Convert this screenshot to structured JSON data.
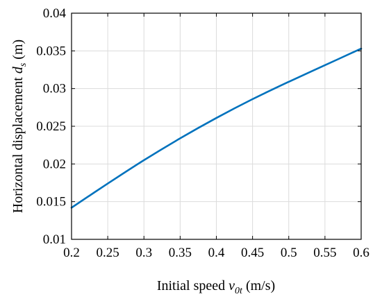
{
  "chart_data": {
    "type": "line",
    "xlabel": {
      "prefix": "Initial  speed ",
      "var": "v",
      "sub": "0t",
      "suffix": " (m/s)"
    },
    "ylabel": {
      "prefix": "Horizontal displacement ",
      "var": "d",
      "sub": "s",
      "suffix": " (m)"
    },
    "xlim": [
      0.2,
      0.6
    ],
    "ylim": [
      0.01,
      0.04
    ],
    "xticks": [
      "0.2",
      "0.25",
      "0.3",
      "0.35",
      "0.4",
      "0.45",
      "0.5",
      "0.55",
      "0.6"
    ],
    "yticks": [
      "0.01",
      "0.015",
      "0.02",
      "0.025",
      "0.03",
      "0.035",
      "0.04"
    ],
    "grid": true,
    "series": [
      {
        "color": "#0072BD",
        "x": [
          0.2,
          0.25,
          0.3,
          0.35,
          0.4,
          0.45,
          0.5,
          0.55,
          0.6
        ],
        "y": [
          0.0142,
          0.0174,
          0.0205,
          0.0234,
          0.0261,
          0.0286,
          0.0309,
          0.0331,
          0.0353
        ]
      }
    ]
  }
}
